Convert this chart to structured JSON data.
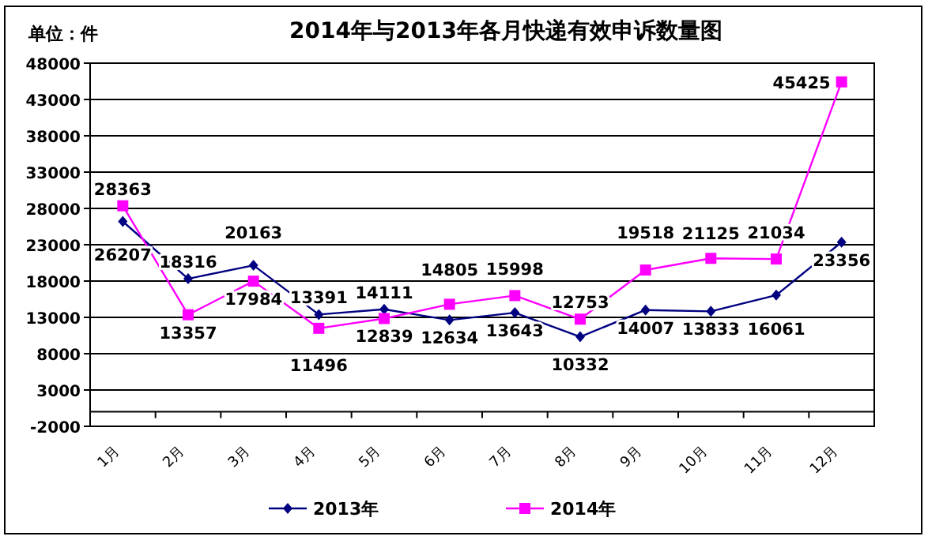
{
  "chart_data": {
    "type": "line",
    "title": "2014年与2013年各月快递有效申诉数量图",
    "ylabel": "单位：件",
    "categories": [
      "1月",
      "2月",
      "3月",
      "4月",
      "5月",
      "6月",
      "7月",
      "8月",
      "9月",
      "10月",
      "11月",
      "12月"
    ],
    "series": [
      {
        "name": "2013年",
        "color": "#000080",
        "marker": "diamond",
        "values": [
          26207,
          18316,
          20163,
          13391,
          14111,
          12634,
          13643,
          10332,
          14007,
          13833,
          16061,
          23356
        ]
      },
      {
        "name": "2014年",
        "color": "#ff00ff",
        "marker": "square",
        "values": [
          28363,
          13357,
          17984,
          11496,
          12839,
          14805,
          15998,
          12753,
          19518,
          21125,
          21034,
          45425
        ]
      }
    ],
    "ylim": [
      -2000,
      48000
    ],
    "yticks": [
      -2000,
      3000,
      8000,
      13000,
      18000,
      23000,
      28000,
      33000,
      38000,
      43000,
      48000
    ],
    "grid": "y",
    "legend": "bottom",
    "data_labels": true
  }
}
